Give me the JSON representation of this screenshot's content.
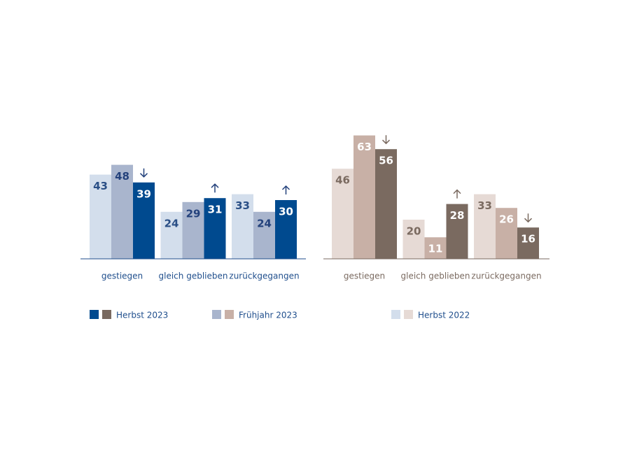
{
  "chart_data": [
    {
      "type": "bar",
      "categories": [
        "gestiegen",
        "gleich geblieben",
        "zurückgegangen"
      ],
      "series": [
        {
          "name": "Herbst 2022",
          "color": "#d3deec",
          "values": [
            43,
            24,
            33
          ]
        },
        {
          "name": "Frühjahr 2023",
          "color": "#a9b5cd",
          "values": [
            48,
            29,
            24
          ]
        },
        {
          "name": "Herbst 2023",
          "color": "#004a8f",
          "values": [
            39,
            31,
            30
          ]
        }
      ]
    },
    {
      "type": "bar",
      "categories": [
        "gestiegen",
        "gleich geblieben",
        "zurückgegangen"
      ],
      "series": [
        {
          "color": "#e6dad5",
          "values": [
            46,
            20,
            33
          ]
        },
        {
          "color": "#c8b0a6",
          "values": [
            63,
            11,
            26
          ]
        },
        {
          "color": "#7a6a60",
          "values": [
            56,
            28,
            16
          ]
        }
      ]
    }
  ]
}
